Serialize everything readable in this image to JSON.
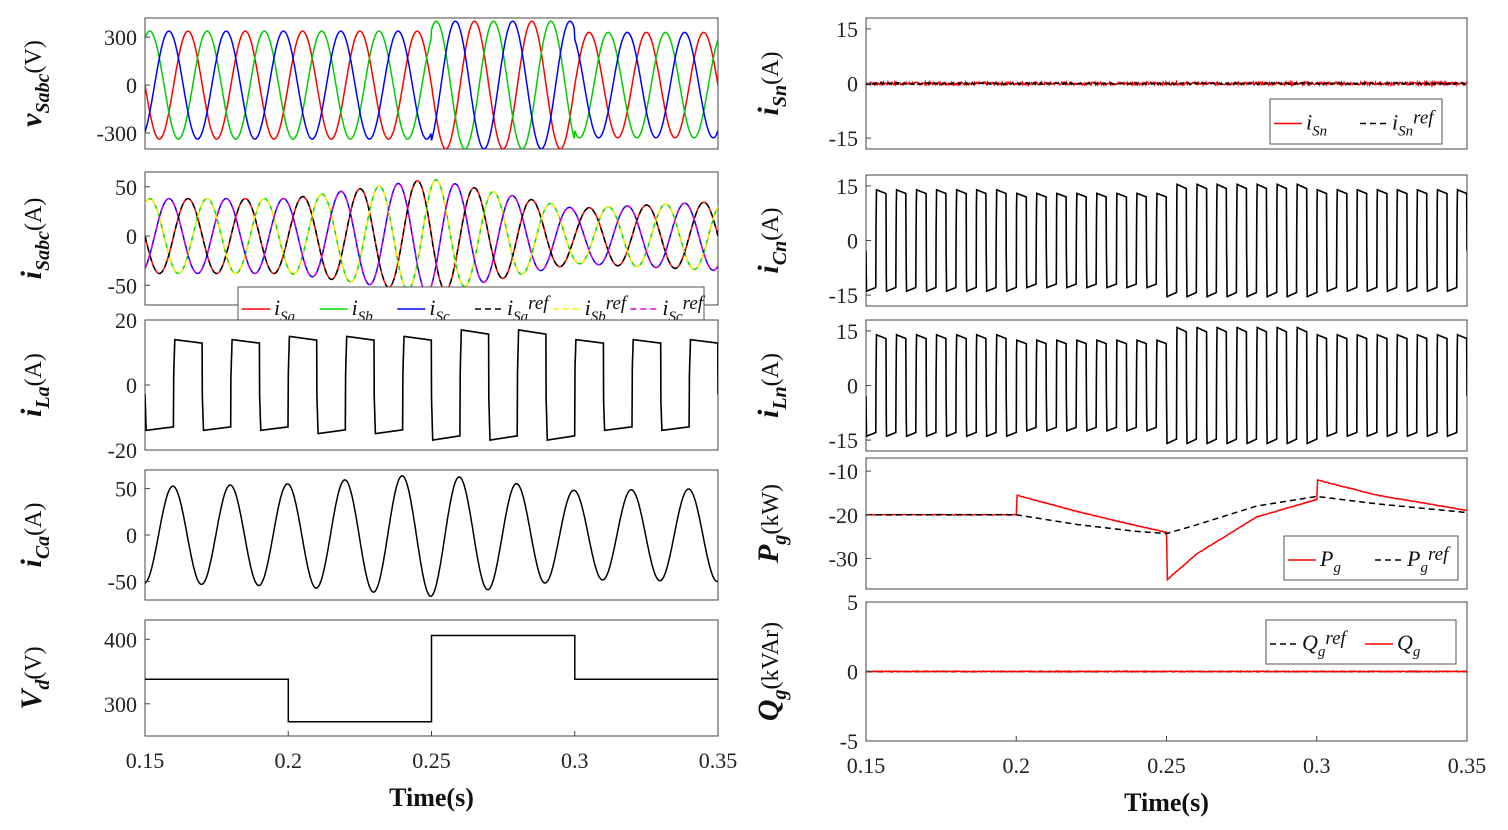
{
  "chart_data": [
    {
      "id": "vs",
      "type": "line",
      "column": "left",
      "ylabel": {
        "sym": "v",
        "sub": "Sabc",
        "unit": "(V)"
      },
      "ylim": [
        -400,
        420
      ],
      "yticks": [
        "300",
        "0",
        "-300"
      ],
      "ytick_values": [
        300,
        0,
        -300
      ],
      "xlim": [
        0.15,
        0.35
      ],
      "series": [
        {
          "name": "v_Sa",
          "color": "#ff0000",
          "kind": "sine",
          "freq": 50,
          "phase": 0
        },
        {
          "name": "v_Sb",
          "color": "#00cc00",
          "kind": "sine",
          "freq": 50,
          "phase": -120
        },
        {
          "name": "v_Sc",
          "color": "#0000ff",
          "kind": "sine",
          "freq": 50,
          "phase": 120
        }
      ],
      "segments": [
        {
          "t0": 0.15,
          "t1": 0.2,
          "amp": 338
        },
        {
          "t0": 0.2,
          "t1": 0.25,
          "amp": 338
        },
        {
          "t0": 0.25,
          "t1": 0.3,
          "amp": 400
        },
        {
          "t0": 0.3,
          "t1": 0.35,
          "amp": 330
        }
      ]
    },
    {
      "id": "is",
      "type": "line",
      "column": "left",
      "ylabel": {
        "sym": "i",
        "sub": "Sabc",
        "unit": "(A)"
      },
      "ylim": [
        -70,
        65
      ],
      "yticks": [
        "50",
        "0",
        "-50"
      ],
      "ytick_values": [
        50,
        0,
        -50
      ],
      "xlim": [
        0.15,
        0.35
      ],
      "series": [
        {
          "name": "i_Sa",
          "color": "#ff0000",
          "kind": "sine",
          "freq": 50,
          "phase": 0
        },
        {
          "name": "i_Sb",
          "color": "#00dd00",
          "kind": "sine",
          "freq": 50,
          "phase": -120
        },
        {
          "name": "i_Sc",
          "color": "#0000ff",
          "kind": "sine",
          "freq": 50,
          "phase": 120
        },
        {
          "name": "i_Saref",
          "color": "#000000",
          "kind": "sine",
          "freq": 50,
          "phase": 0,
          "dashed": true
        },
        {
          "name": "i_Sbref",
          "color": "#ffee00",
          "kind": "sine",
          "freq": 50,
          "phase": -120,
          "dashed": true
        },
        {
          "name": "i_Scref",
          "color": "#dd00dd",
          "kind": "sine",
          "freq": 50,
          "phase": 120,
          "dashed": true
        }
      ],
      "amplitude_points": [
        [
          0.15,
          38
        ],
        [
          0.2,
          38
        ],
        [
          0.25,
          58
        ],
        [
          0.3,
          28
        ],
        [
          0.35,
          35
        ]
      ],
      "legend": {
        "location": "bottom-right",
        "entries": [
          {
            "sym": "i",
            "sub": "Sa",
            "sup": ""
          },
          {
            "sym": "i",
            "sub": "Sb",
            "sup": ""
          },
          {
            "sym": "i",
            "sub": "Sc",
            "sup": ""
          },
          {
            "sym": "i",
            "sub": "Sa",
            "sup": "ref"
          },
          {
            "sym": "i",
            "sub": "Sb",
            "sup": "ref"
          },
          {
            "sym": "i",
            "sub": "Sc",
            "sup": "ref"
          }
        ]
      }
    },
    {
      "id": "ila",
      "type": "line",
      "column": "left",
      "ylabel": {
        "sym": "i",
        "sub": "La",
        "unit": "(A)"
      },
      "ylim": [
        -20,
        20
      ],
      "yticks": [
        "20",
        "0",
        "-20"
      ],
      "ytick_values": [
        20,
        0,
        -20
      ],
      "xlim": [
        0.15,
        0.35
      ],
      "series": [
        {
          "name": "i_La",
          "color": "#000000",
          "kind": "square",
          "freq": 50
        }
      ],
      "segments": [
        {
          "t0": 0.15,
          "t1": 0.2,
          "amp": 14
        },
        {
          "t0": 0.2,
          "t1": 0.25,
          "amp": 15
        },
        {
          "t0": 0.25,
          "t1": 0.3,
          "amp": 17
        },
        {
          "t0": 0.3,
          "t1": 0.35,
          "amp": 14
        }
      ]
    },
    {
      "id": "ica",
      "type": "line",
      "column": "left",
      "ylabel": {
        "sym": "i",
        "sub": "Ca",
        "unit": "(A)"
      },
      "ylim": [
        -70,
        70
      ],
      "yticks": [
        "50",
        "0",
        "-50"
      ],
      "ytick_values": [
        50,
        0,
        -50
      ],
      "xlim": [
        0.15,
        0.35
      ],
      "series": [
        {
          "name": "i_Ca",
          "color": "#000000",
          "kind": "sine",
          "freq": 50,
          "phase": 95
        }
      ],
      "amplitude_points": [
        [
          0.15,
          52
        ],
        [
          0.2,
          55
        ],
        [
          0.25,
          66
        ],
        [
          0.3,
          48
        ],
        [
          0.35,
          50
        ]
      ]
    },
    {
      "id": "vd",
      "type": "line",
      "column": "left",
      "ylabel": {
        "sym": "V",
        "sub": "d",
        "unit": "(V)"
      },
      "ylim": [
        250,
        430
      ],
      "yticks": [
        "400",
        "300"
      ],
      "ytick_values": [
        400,
        300
      ],
      "xlim": [
        0.15,
        0.35
      ],
      "xticks": [
        "0.15",
        "0.2",
        "0.25",
        "0.3",
        "0.35"
      ],
      "xtick_values": [
        0.15,
        0.2,
        0.25,
        0.3,
        0.35
      ],
      "xlabel": "Time(s)",
      "series": [
        {
          "name": "V_d",
          "color": "#000000",
          "kind": "step",
          "steps": [
            [
              0.15,
              338
            ],
            [
              0.2,
              272
            ],
            [
              0.25,
              406
            ],
            [
              0.3,
              338
            ]
          ]
        }
      ]
    },
    {
      "id": "isn",
      "type": "line",
      "column": "right",
      "ylabel": {
        "sym": "i",
        "sub": "Sn",
        "unit": "(A)"
      },
      "ylim": [
        -18,
        18
      ],
      "yticks": [
        "15",
        "0",
        "-15"
      ],
      "ytick_values": [
        15,
        0,
        -15
      ],
      "xlim": [
        0.15,
        0.35
      ],
      "series": [
        {
          "name": "i_Sn",
          "color": "#ff0000",
          "kind": "noise",
          "level": 0,
          "noise": 0.4
        },
        {
          "name": "i_Snref",
          "color": "#000000",
          "kind": "noise",
          "level": 0,
          "noise": 0.2,
          "dashed": true
        }
      ],
      "legend": {
        "location": "bottom-right",
        "entries": [
          {
            "sym": "i",
            "sub": "Sn",
            "sup": ""
          },
          {
            "sym": "i",
            "sub": "Sn",
            "sup": "ref"
          }
        ]
      }
    },
    {
      "id": "icn",
      "type": "line",
      "column": "right",
      "ylabel": {
        "sym": "i",
        "sub": "Cn",
        "unit": "(A)"
      },
      "ylim": [
        -18,
        18
      ],
      "yticks": [
        "15",
        "0",
        "-15"
      ],
      "ytick_values": [
        15,
        0,
        -15
      ],
      "xlim": [
        0.15,
        0.35
      ],
      "series": [
        {
          "name": "i_Cn",
          "color": "#000000",
          "kind": "square",
          "freq": 150
        }
      ],
      "segments": [
        {
          "t0": 0.15,
          "t1": 0.2,
          "amp": 14
        },
        {
          "t0": 0.2,
          "t1": 0.25,
          "amp": 13
        },
        {
          "t0": 0.25,
          "t1": 0.3,
          "amp": 15.5
        },
        {
          "t0": 0.3,
          "t1": 0.35,
          "amp": 14
        }
      ]
    },
    {
      "id": "iln",
      "type": "line",
      "column": "right",
      "ylabel": {
        "sym": "i",
        "sub": "Ln",
        "unit": "(A)"
      },
      "ylim": [
        -18,
        18
      ],
      "yticks": [
        "15",
        "0",
        "-15"
      ],
      "ytick_values": [
        15,
        0,
        -15
      ],
      "xlim": [
        0.15,
        0.35
      ],
      "series": [
        {
          "name": "i_Ln",
          "color": "#000000",
          "kind": "square",
          "freq": 150
        }
      ],
      "segments": [
        {
          "t0": 0.15,
          "t1": 0.2,
          "amp": 14
        },
        {
          "t0": 0.2,
          "t1": 0.25,
          "amp": 12.5
        },
        {
          "t0": 0.25,
          "t1": 0.3,
          "amp": 16
        },
        {
          "t0": 0.3,
          "t1": 0.35,
          "amp": 14
        }
      ]
    },
    {
      "id": "pg",
      "type": "line",
      "column": "right",
      "ylabel": {
        "sym": "P",
        "sub": "g",
        "unit": "(kW)"
      },
      "ylim": [
        -37,
        -7
      ],
      "yticks": [
        "-10",
        "-20",
        "-30"
      ],
      "ytick_values": [
        -10,
        -20,
        -30
      ],
      "xlim": [
        0.15,
        0.35
      ],
      "series": [
        {
          "name": "P_g",
          "color": "#ff0000",
          "kind": "points",
          "points": [
            [
              0.15,
              -20
            ],
            [
              0.2,
              -20
            ],
            [
              0.2,
              -15.5
            ],
            [
              0.22,
              -19.2
            ],
            [
              0.24,
              -22.5
            ],
            [
              0.25,
              -24
            ],
            [
              0.25,
              -35
            ],
            [
              0.26,
              -29
            ],
            [
              0.28,
              -20.5
            ],
            [
              0.3,
              -16.5
            ],
            [
              0.3,
              -12
            ],
            [
              0.32,
              -15.5
            ],
            [
              0.35,
              -19
            ]
          ]
        },
        {
          "name": "P_gref",
          "color": "#000000",
          "kind": "points",
          "dashed": true,
          "points": [
            [
              0.15,
              -20
            ],
            [
              0.2,
              -20
            ],
            [
              0.22,
              -22.2
            ],
            [
              0.24,
              -23.8
            ],
            [
              0.25,
              -24.3
            ],
            [
              0.26,
              -22.3
            ],
            [
              0.28,
              -18
            ],
            [
              0.3,
              -15.8
            ],
            [
              0.32,
              -17.5
            ],
            [
              0.35,
              -19.5
            ]
          ]
        }
      ],
      "legend": {
        "location": "bottom-right",
        "entries": [
          {
            "sym": "P",
            "sub": "g",
            "sup": ""
          },
          {
            "sym": "P",
            "sub": "g",
            "sup": "ref"
          }
        ]
      }
    },
    {
      "id": "qg",
      "type": "line",
      "column": "right",
      "ylabel": {
        "sym": "Q",
        "sub": "g",
        "unit": "(kVAr)"
      },
      "ylim": [
        -5,
        5
      ],
      "yticks": [
        "5",
        "0",
        "-5"
      ],
      "ytick_values": [
        5,
        0,
        -5
      ],
      "xlim": [
        0.15,
        0.35
      ],
      "xticks": [
        "0.15",
        "0.2",
        "0.25",
        "0.3",
        "0.35"
      ],
      "xtick_values": [
        0.15,
        0.2,
        0.25,
        0.3,
        0.35
      ],
      "xlabel": "Time(s)",
      "series": [
        {
          "name": "Q_gref",
          "color": "#000000",
          "kind": "noise",
          "level": 0,
          "noise": 0.02,
          "dashed": true
        },
        {
          "name": "Q_g",
          "color": "#ff0000",
          "kind": "noise",
          "level": 0,
          "noise": 0.03
        }
      ],
      "legend": {
        "location": "top-right",
        "entries": [
          {
            "sym": "Q",
            "sub": "g",
            "sup": "ref"
          },
          {
            "sym": "Q",
            "sub": "g",
            "sup": ""
          }
        ]
      }
    }
  ]
}
